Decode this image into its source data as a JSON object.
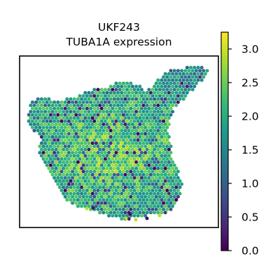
{
  "chart_data": {
    "type": "scatter",
    "subtype": "spatial-transcriptomics-hexbin",
    "title_lines": [
      "UKF243",
      "TUBA1A expression"
    ],
    "xlabel": "",
    "ylabel": "",
    "axis_ticks_shown": false,
    "grid": false,
    "colormap": "viridis",
    "colorbar": {
      "label": "",
      "vmin": 0.0,
      "vmax": 3.25,
      "ticks": [
        0.0,
        0.5,
        1.0,
        1.5,
        2.0,
        2.5,
        3.0
      ],
      "tick_labels": [
        "0.0",
        "0.5",
        "1.0",
        "1.5",
        "2.0",
        "2.5",
        "3.0"
      ]
    },
    "colors": {
      "viridis_stops": [
        "#440154",
        "#482878",
        "#3e4989",
        "#31688e",
        "#26828e",
        "#1f9e89",
        "#35b779",
        "#6ece58",
        "#b5de2b",
        "#fde725"
      ],
      "frame": "#000000",
      "background": "#ffffff"
    },
    "value_summary": {
      "note_x_units": "spot grid coordinates (not printed)",
      "dominant_range": [
        1.5,
        2.8
      ],
      "low_value_spots_present": true
    }
  }
}
